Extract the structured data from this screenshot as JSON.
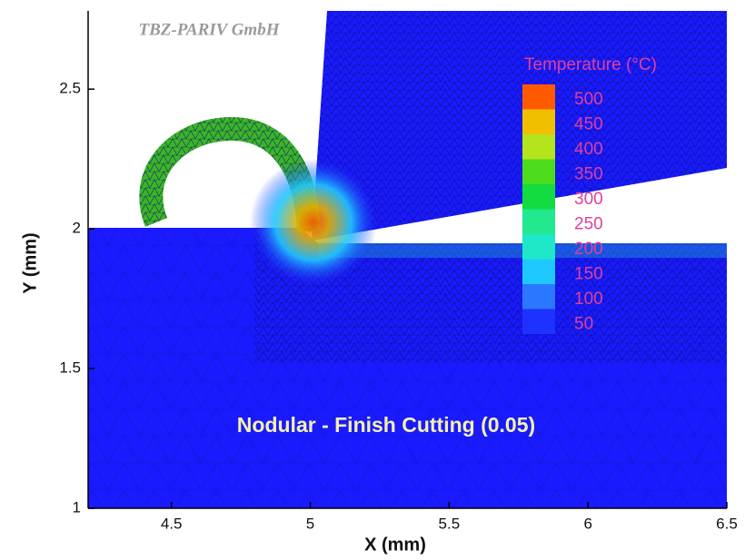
{
  "chart_data": {
    "type": "fem-contour",
    "watermark": "TBZ-PARIV GmbH",
    "annotation": "Nodular - Finish Cutting (0.05)",
    "xlabel": "X (mm)",
    "ylabel": "Y (mm)",
    "xlim": [
      4.2,
      6.5
    ],
    "ylim": [
      1,
      2.78
    ],
    "xticks": [
      4.5,
      5,
      5.5,
      6,
      6.5
    ],
    "yticks": [
      1,
      1.5,
      2,
      2.5
    ],
    "colorbar": {
      "title": "Temperature (°C)",
      "levels": [
        50,
        100,
        150,
        200,
        250,
        300,
        350,
        400,
        450,
        500
      ],
      "colors": [
        "#1e32ff",
        "#2a78ff",
        "#1ec8ff",
        "#1ee8c8",
        "#22e890",
        "#12dc40",
        "#4cdc1c",
        "#b4e41c",
        "#f0c000",
        "#ff5a00"
      ]
    }
  }
}
